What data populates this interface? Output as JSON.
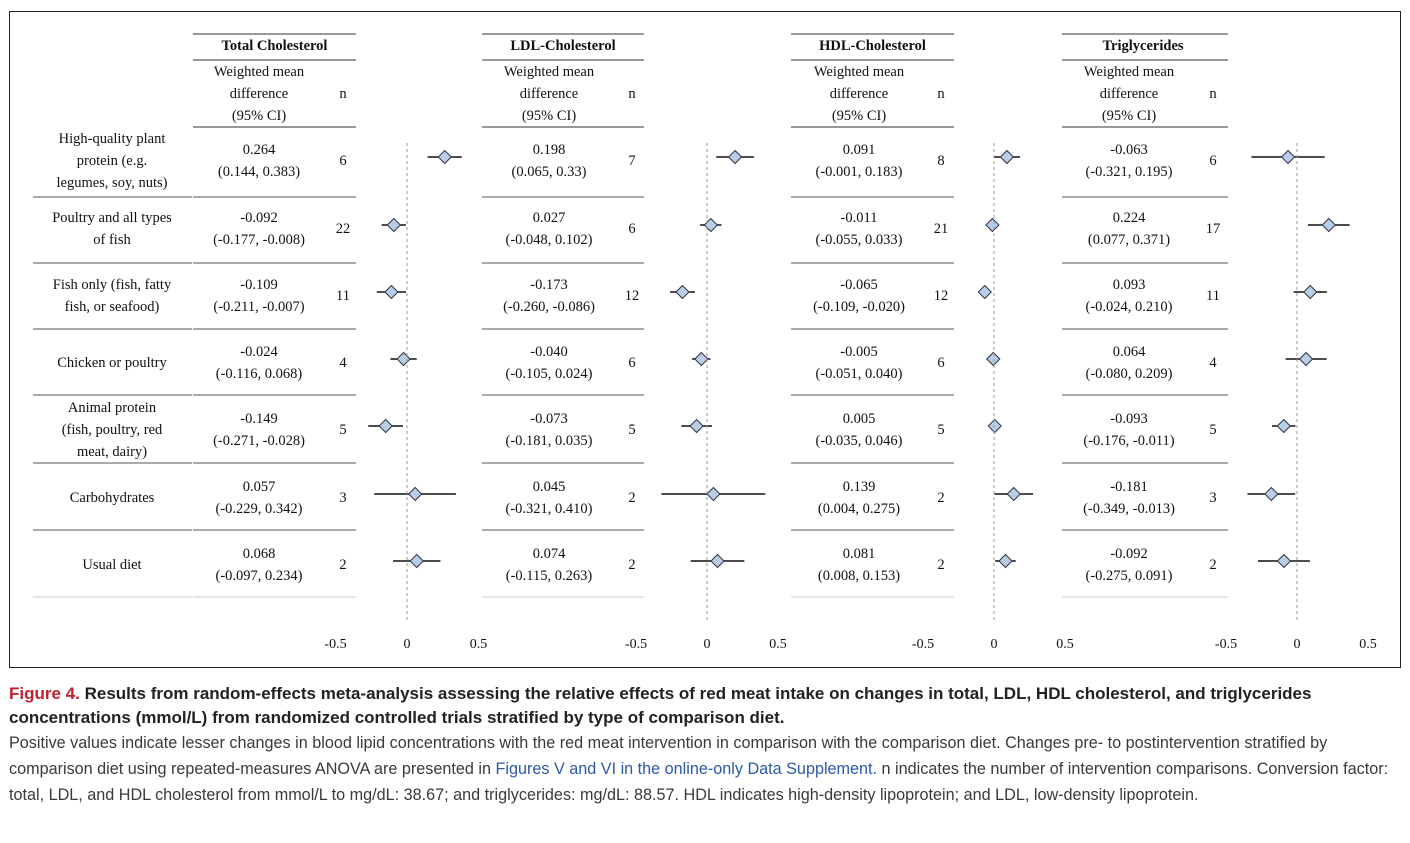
{
  "chart_data": {
    "type": "forest",
    "row_labels": [
      [
        "High-quality plant",
        "protein (e.g.",
        "legumes, soy, nuts)"
      ],
      [
        "Poultry and all types",
        "of fish"
      ],
      [
        "Fish only (fish, fatty",
        "fish, or seafood)"
      ],
      [
        "Chicken or poultry"
      ],
      [
        "Animal protein",
        "(fish, poultry, red",
        "meat, dairy)"
      ],
      [
        "Carbohydrates"
      ],
      [
        "Usual diet"
      ]
    ],
    "column_subheader": [
      "Weighted mean",
      "difference",
      "(95% CI)"
    ],
    "n_header": "n",
    "x_ticks": [
      -0.5,
      0,
      0.5
    ],
    "x_tick_labels": [
      "-0.5",
      "0",
      "0.5"
    ],
    "xlim": [
      -0.5,
      0.5
    ],
    "marker_color": "#b8cde6",
    "panels": [
      {
        "title": "Total Cholesterol",
        "rows": [
          {
            "wmd": "0.264",
            "ci": "(0.144, 0.383)",
            "n": "6",
            "est": 0.264,
            "lo": 0.144,
            "hi": 0.383
          },
          {
            "wmd": "-0.092",
            "ci": "(-0.177, -0.008)",
            "n": "22",
            "est": -0.092,
            "lo": -0.177,
            "hi": -0.008
          },
          {
            "wmd": "-0.109",
            "ci": "(-0.211, -0.007)",
            "n": "11",
            "est": -0.109,
            "lo": -0.211,
            "hi": -0.007
          },
          {
            "wmd": "-0.024",
            "ci": "(-0.116, 0.068)",
            "n": "4",
            "est": -0.024,
            "lo": -0.116,
            "hi": 0.068
          },
          {
            "wmd": "-0.149",
            "ci": "(-0.271, -0.028)",
            "n": "5",
            "est": -0.149,
            "lo": -0.271,
            "hi": -0.028
          },
          {
            "wmd": "0.057",
            "ci": "(-0.229, 0.342)",
            "n": "3",
            "est": 0.057,
            "lo": -0.229,
            "hi": 0.342
          },
          {
            "wmd": "0.068",
            "ci": "(-0.097, 0.234)",
            "n": "2",
            "est": 0.068,
            "lo": -0.097,
            "hi": 0.234
          }
        ]
      },
      {
        "title": "LDL-Cholesterol",
        "rows": [
          {
            "wmd": "0.198",
            "ci": "(0.065, 0.33)",
            "n": "7",
            "est": 0.198,
            "lo": 0.065,
            "hi": 0.33
          },
          {
            "wmd": "0.027",
            "ci": "(-0.048, 0.102)",
            "n": "6",
            "est": 0.027,
            "lo": -0.048,
            "hi": 0.102
          },
          {
            "wmd": "-0.173",
            "ci": "(-0.260, -0.086)",
            "n": "12",
            "est": -0.173,
            "lo": -0.26,
            "hi": -0.086
          },
          {
            "wmd": "-0.040",
            "ci": "(-0.105, 0.024)",
            "n": "6",
            "est": -0.04,
            "lo": -0.105,
            "hi": 0.024
          },
          {
            "wmd": "-0.073",
            "ci": "(-0.181, 0.035)",
            "n": "5",
            "est": -0.073,
            "lo": -0.181,
            "hi": 0.035
          },
          {
            "wmd": "0.045",
            "ci": "(-0.321, 0.410)",
            "n": "2",
            "est": 0.045,
            "lo": -0.321,
            "hi": 0.41
          },
          {
            "wmd": "0.074",
            "ci": "(-0.115, 0.263)",
            "n": "2",
            "est": 0.074,
            "lo": -0.115,
            "hi": 0.263
          }
        ]
      },
      {
        "title": "HDL-Cholesterol",
        "rows": [
          {
            "wmd": "0.091",
            "ci": "(-0.001, 0.183)",
            "n": "8",
            "est": 0.091,
            "lo": -0.001,
            "hi": 0.183
          },
          {
            "wmd": "-0.011",
            "ci": "(-0.055, 0.033)",
            "n": "21",
            "est": -0.011,
            "lo": -0.055,
            "hi": 0.033
          },
          {
            "wmd": "-0.065",
            "ci": "(-0.109, -0.020)",
            "n": "12",
            "est": -0.065,
            "lo": -0.109,
            "hi": -0.02
          },
          {
            "wmd": "-0.005",
            "ci": "(-0.051, 0.040)",
            "n": "6",
            "est": -0.005,
            "lo": -0.051,
            "hi": 0.04
          },
          {
            "wmd": "0.005",
            "ci": "(-0.035, 0.046)",
            "n": "5",
            "est": 0.005,
            "lo": -0.035,
            "hi": 0.046
          },
          {
            "wmd": "0.139",
            "ci": "(0.004, 0.275)",
            "n": "2",
            "est": 0.139,
            "lo": 0.004,
            "hi": 0.275
          },
          {
            "wmd": "0.081",
            "ci": "(0.008, 0.153)",
            "n": "2",
            "est": 0.081,
            "lo": 0.008,
            "hi": 0.153
          }
        ]
      },
      {
        "title": "Triglycerides",
        "rows": [
          {
            "wmd": "-0.063",
            "ci": "(-0.321, 0.195)",
            "n": "6",
            "est": -0.063,
            "lo": -0.321,
            "hi": 0.195
          },
          {
            "wmd": "0.224",
            "ci": "(0.077, 0.371)",
            "n": "17",
            "est": 0.224,
            "lo": 0.077,
            "hi": 0.371
          },
          {
            "wmd": "0.093",
            "ci": "(-0.024, 0.210)",
            "n": "11",
            "est": 0.093,
            "lo": -0.024,
            "hi": 0.21
          },
          {
            "wmd": "0.064",
            "ci": "(-0.080, 0.209)",
            "n": "4",
            "est": 0.064,
            "lo": -0.08,
            "hi": 0.209
          },
          {
            "wmd": "-0.093",
            "ci": "(-0.176, -0.011)",
            "n": "5",
            "est": -0.093,
            "lo": -0.176,
            "hi": -0.011
          },
          {
            "wmd": "-0.181",
            "ci": "(-0.349, -0.013)",
            "n": "3",
            "est": -0.181,
            "lo": -0.349,
            "hi": -0.013
          },
          {
            "wmd": "-0.092",
            "ci": "(-0.275, 0.091)",
            "n": "2",
            "est": -0.092,
            "lo": -0.275,
            "hi": 0.091
          }
        ]
      }
    ]
  },
  "caption": {
    "label": "Figure 4.",
    "title": " Results from random-effects meta-analysis assessing the relative effects of red meat intake on changes in total, LDL, HDL cholesterol, and triglycerides concentrations (mmol/L) from randomized controlled trials stratified by type of comparison diet.",
    "body_part1": "Positive values indicate lesser changes in blood lipid concentrations with the red meat intervention in comparison with the comparison diet. Changes pre- to postintervention stratified by comparison diet using repeated-measures ANOVA are presented in ",
    "link_text": "Figures V and VI in the online-only Data Supplement.",
    "body_part2": " n indicates the number of intervention comparisons. Conversion factor: total, LDL, and HDL cholesterol from mmol/L to mg/dL: 38.67; and triglycerides: mg/dL: 88.57. HDL indicates high-density lipoprotein; and LDL, low-density lipoprotein."
  }
}
